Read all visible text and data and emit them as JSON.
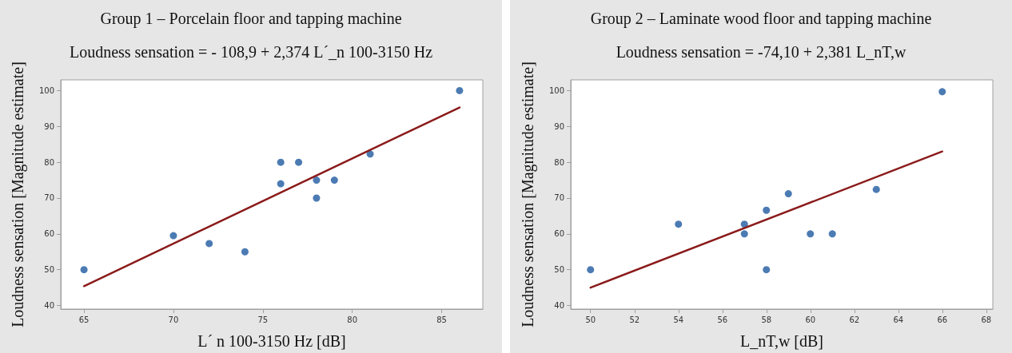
{
  "chart_data": [
    {
      "type": "scatter",
      "title": "Group 1 – Porcelain floor and tapping machine",
      "subtitle": "Loudness sensation = - 108,9 + 2,374 L´_n 100-3150 Hz",
      "xlabel": "L´ n 100-3150 Hz [dB]",
      "ylabel": "Loudness sensation [Magnitude estimate]",
      "xlim": [
        63.7,
        87.3
      ],
      "xticks": [
        65,
        70,
        75,
        80,
        85
      ],
      "ylim": [
        39,
        103
      ],
      "yticks": [
        40,
        50,
        60,
        70,
        80,
        90,
        100
      ],
      "grid": false,
      "marker": "circle",
      "series": [
        {
          "color": "#1f5aa0",
          "x": [
            65,
            70,
            72,
            74,
            76,
            76,
            77,
            78,
            78,
            79,
            81,
            86
          ],
          "values": [
            50,
            59.5,
            57.3,
            55,
            80,
            74,
            80,
            75,
            70,
            75,
            82.3,
            100
          ]
        },
        {
          "type": "line",
          "color": "#8b1a1a",
          "marker": "none",
          "x": [
            65,
            86
          ],
          "values": [
            45.4,
            95.3
          ]
        }
      ]
    },
    {
      "type": "scatter",
      "title": "Group 2 – Laminate wood floor and tapping machine",
      "subtitle": "Loudness sensation = -74,10 + 2,381 L_nT,w",
      "xlabel": "L_nT,w [dB]",
      "ylabel": "Loudness sensation [Magnitude estimate]",
      "xlim": [
        49.1,
        68.3
      ],
      "xticks": [
        50,
        52,
        54,
        56,
        58,
        60,
        62,
        64,
        66,
        68
      ],
      "ylim": [
        39,
        103
      ],
      "yticks": [
        40,
        50,
        60,
        70,
        80,
        90,
        100
      ],
      "grid": false,
      "marker": "circle",
      "series": [
        {
          "color": "#1f5aa0",
          "x": [
            50,
            54,
            57,
            57,
            58,
            58,
            59,
            60,
            61,
            63,
            66
          ],
          "values": [
            50,
            62.7,
            62.7,
            60,
            66.6,
            50,
            71.2,
            60,
            60,
            72.4,
            99.7
          ]
        },
        {
          "type": "line",
          "color": "#8b1a1a",
          "marker": "none",
          "x": [
            50,
            66
          ],
          "values": [
            45,
            83
          ]
        }
      ]
    }
  ]
}
